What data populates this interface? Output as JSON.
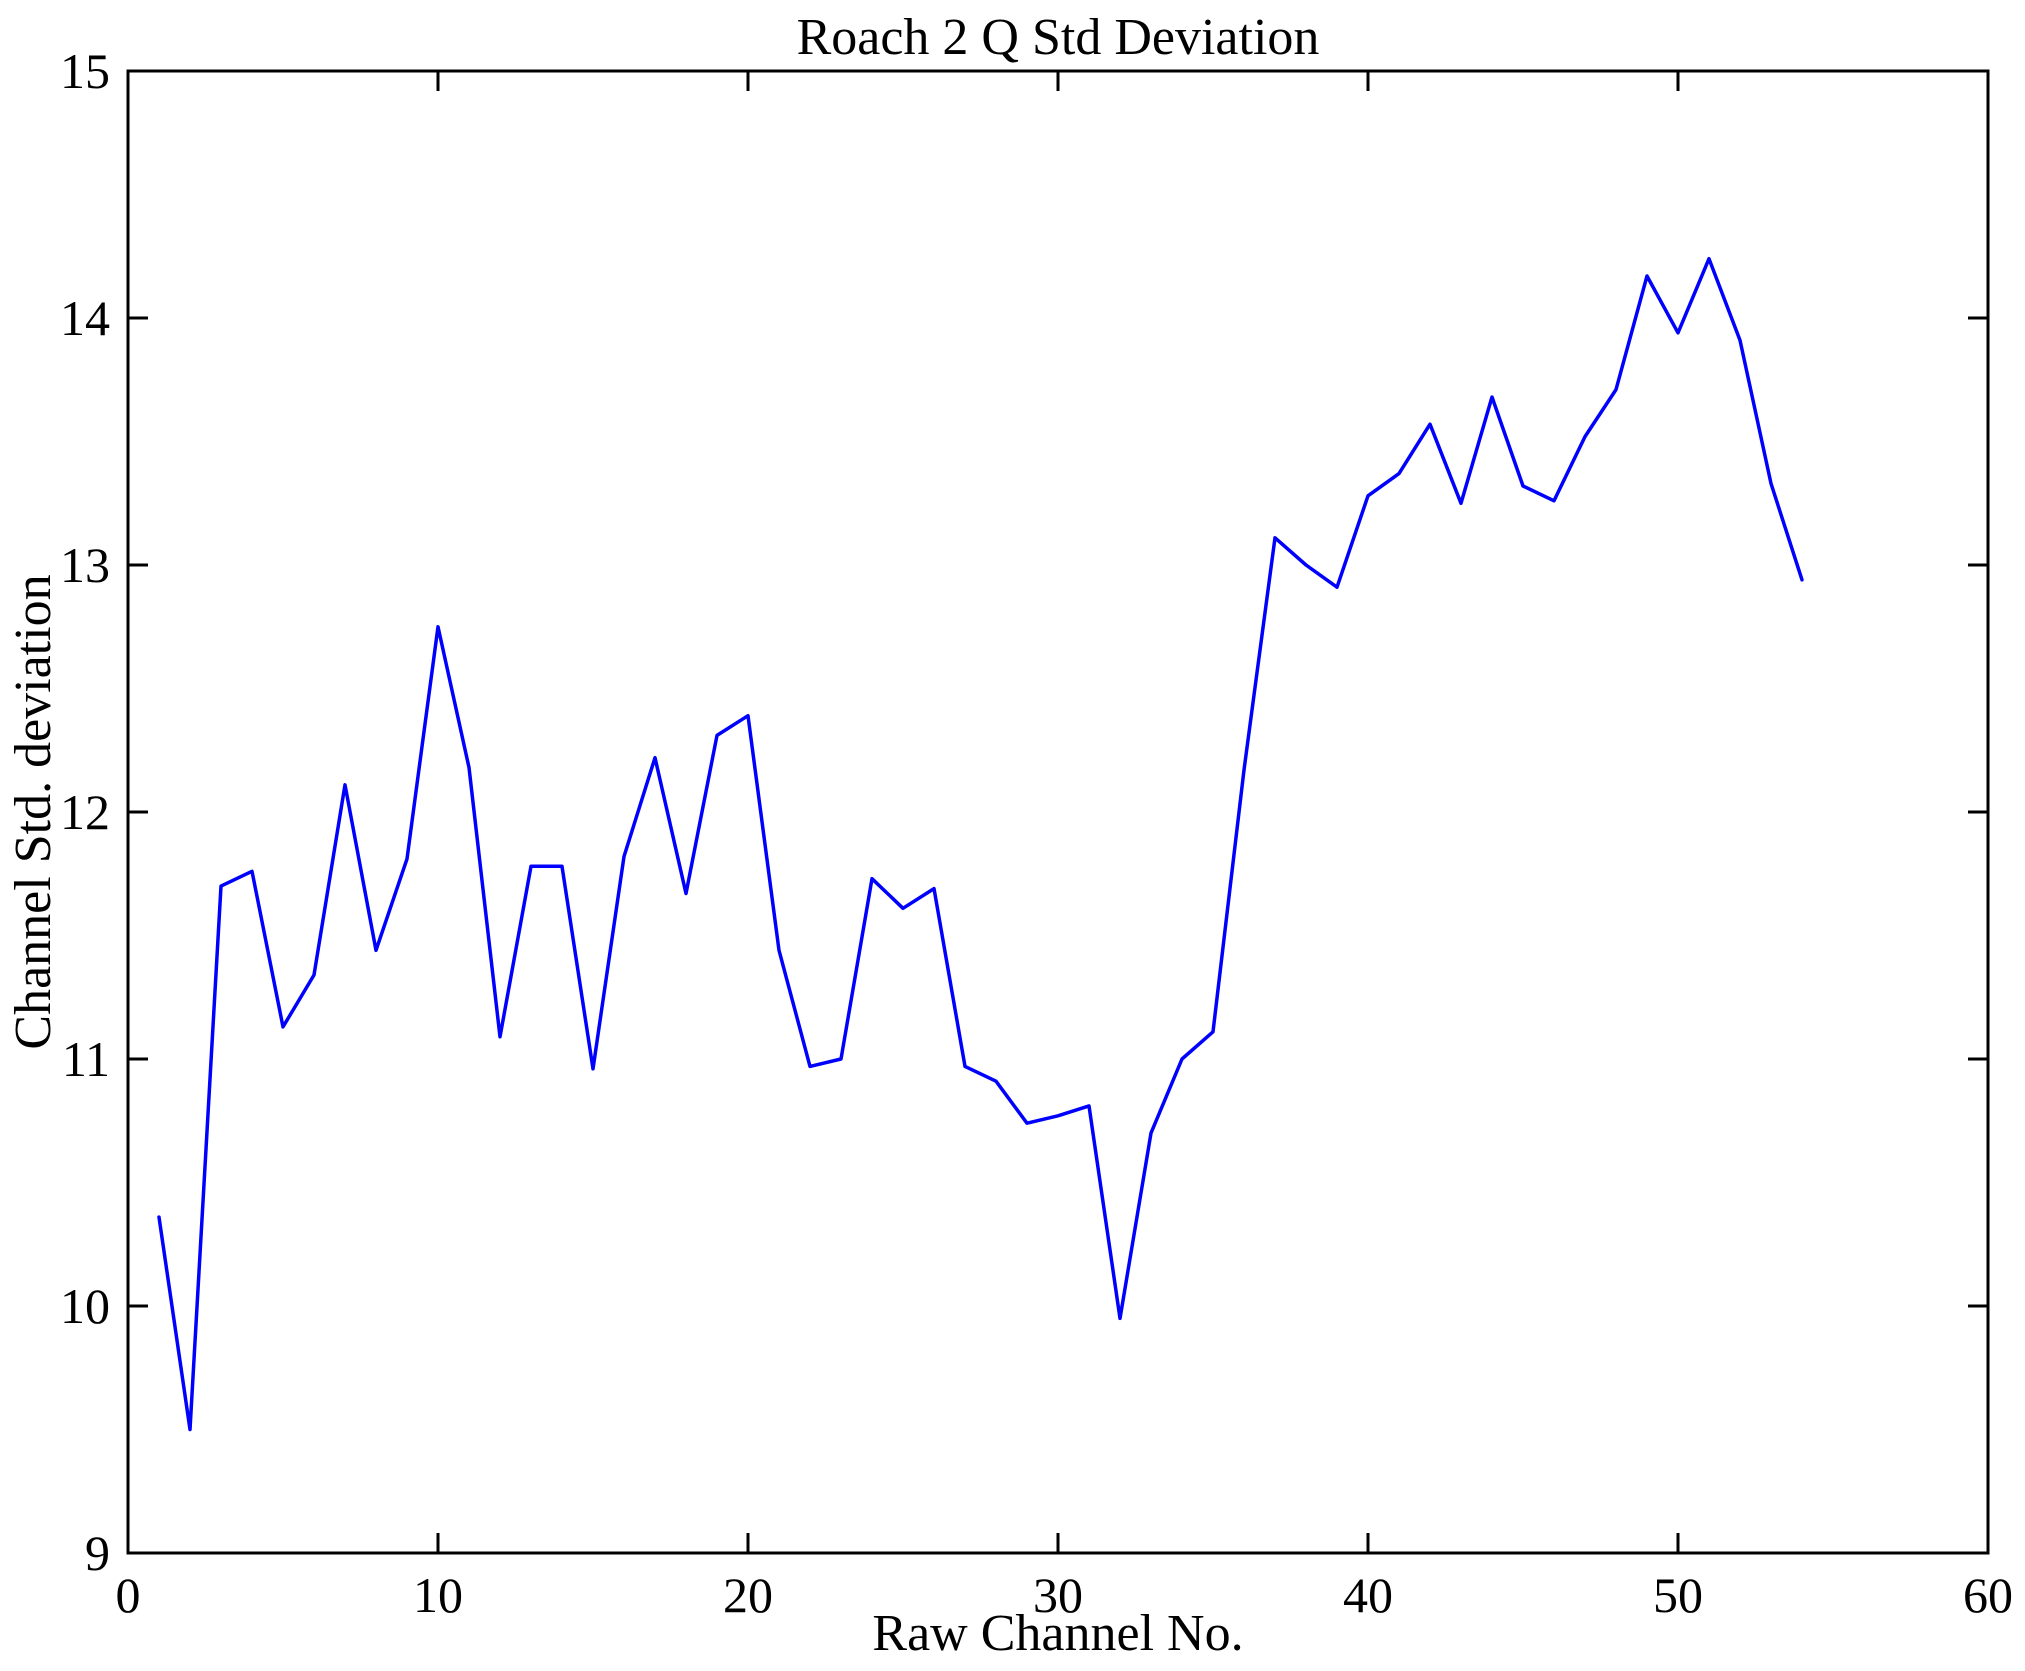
{
  "chart_data": {
    "type": "line",
    "title": "Roach 2 Q Std Deviation",
    "xlabel": "Raw Channel No.",
    "ylabel": "Channel Std. deviation",
    "xlim": [
      0,
      60
    ],
    "ylim": [
      9,
      15
    ],
    "xticks": [
      0,
      10,
      20,
      30,
      40,
      50,
      60
    ],
    "yticks": [
      9,
      10,
      11,
      12,
      13,
      14,
      15
    ],
    "grid": false,
    "legend": null,
    "line_color": "#0000FF",
    "axis_color": "#000000",
    "background_color": "#FFFFFF",
    "x": [
      1,
      2,
      3,
      4,
      5,
      6,
      7,
      8,
      9,
      10,
      11,
      12,
      13,
      14,
      15,
      16,
      17,
      18,
      19,
      20,
      21,
      22,
      23,
      24,
      25,
      26,
      27,
      28,
      29,
      30,
      31,
      32,
      33,
      34,
      35,
      36,
      37,
      38,
      39,
      40,
      41,
      42,
      43,
      44,
      45,
      46,
      47,
      48,
      49,
      50,
      51,
      52,
      53,
      54
    ],
    "y": [
      10.36,
      9.5,
      11.7,
      11.76,
      11.13,
      11.34,
      12.11,
      11.44,
      11.81,
      12.75,
      12.18,
      11.09,
      11.78,
      11.78,
      10.96,
      11.82,
      12.22,
      11.67,
      12.31,
      12.39,
      11.44,
      10.97,
      11.0,
      11.73,
      11.61,
      11.69,
      10.97,
      10.91,
      10.74,
      10.77,
      10.81,
      9.95,
      10.7,
      11.0,
      11.11,
      12.17,
      13.11,
      13.0,
      12.91,
      13.28,
      13.37,
      13.57,
      13.25,
      13.68,
      13.32,
      13.26,
      13.52,
      13.71,
      14.17,
      13.94,
      14.24,
      13.91,
      13.33,
      12.94
    ]
  }
}
